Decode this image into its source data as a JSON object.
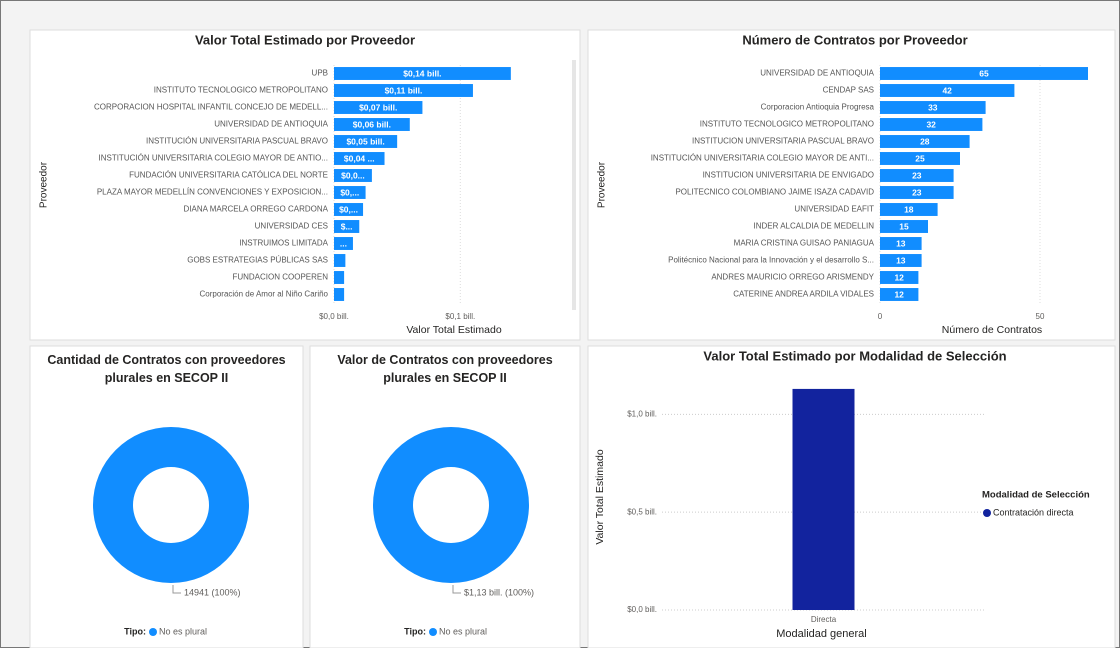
{
  "chart_data": [
    {
      "type": "bar",
      "orientation": "horizontal",
      "title": "Valor Total Estimado por Proveedor",
      "x_label": "Valor Total Estimado",
      "y_label": "Proveedor",
      "categories": [
        "UPB",
        "INSTITUTO TECNOLOGICO METROPOLITANO",
        "CORPORACION HOSPITAL INFANTIL CONCEJO DE MEDELL...",
        "UNIVERSIDAD DE ANTIOQUIA",
        "INSTITUCIÓN UNIVERSITARIA PASCUAL BRAVO",
        "INSTITUCIÓN UNIVERSITARIA COLEGIO MAYOR DE ANTIO...",
        "FUNDACIÓN UNIVERSITARIA CATÓLICA DEL NORTE",
        "PLAZA MAYOR MEDELLÍN CONVENCIONES Y EXPOSICION...",
        "DIANA MARCELA ORREGO CARDONA",
        "UNIVERSIDAD CES",
        "INSTRUIMOS LIMITADA",
        "GOBS ESTRATEGIAS PÚBLICAS SAS",
        "FUNDACION COOPEREN",
        "Corporación de Amor al Niño Cariño"
      ],
      "values": [
        0.14,
        0.11,
        0.07,
        0.06,
        0.05,
        0.04,
        0.03,
        0.025,
        0.023,
        0.02,
        0.015,
        0.009,
        0.008,
        0.008
      ],
      "value_labels": [
        "$0,14 bill.",
        "$0,11 bill.",
        "$0,07 bill.",
        "$0,06 bill.",
        "$0,05 bill.",
        "$0,04 ...",
        "$0,0...",
        "$0,...",
        "$0,...",
        "$...",
        "...",
        null,
        null,
        null
      ],
      "color": "#118dff",
      "xlim": [
        0,
        0.19
      ],
      "xticks": [
        {
          "value": 0,
          "label": "$0,0 bill."
        },
        {
          "value": 0.1,
          "label": "$0,1 bill."
        }
      ],
      "grid": true
    },
    {
      "type": "bar",
      "orientation": "horizontal",
      "title": "Número de Contratos por Proveedor",
      "x_label": "Número de Contratos",
      "y_label": "Proveedor",
      "categories": [
        "UNIVERSIDAD DE ANTIOQUIA",
        "CENDAP SAS",
        "Corporacion Antioquia Progresa",
        "INSTITUTO TECNOLOGICO METROPOLITANO",
        "INSTITUCION UNIVERSITARIA PASCUAL BRAVO",
        "INSTITUCIÓN UNIVERSITARIA COLEGIO MAYOR DE ANTI...",
        "INSTITUCION UNIVERSITARIA DE ENVIGADO",
        "POLITECNICO COLOMBIANO JAIME ISAZA CADAVID",
        "UNIVERSIDAD EAFIT",
        "INDER ALCALDIA DE MEDELLIN",
        "MARIA CRISTINA GUISAO PANIAGUA",
        "Politécnico Nacional para la Innovación y el desarrollo S...",
        "ANDRES MAURICIO ORREGO ARISMENDY",
        "CATERINE ANDREA ARDILA VIDALES"
      ],
      "values": [
        65,
        42,
        33,
        32,
        28,
        25,
        23,
        23,
        18,
        15,
        13,
        13,
        12,
        12
      ],
      "color": "#118dff",
      "xlim": [
        0,
        70
      ],
      "xticks": [
        0,
        50
      ],
      "grid": true
    },
    {
      "type": "donut",
      "title": "Cantidad de Contratos con proveedores plurales en SECOP II",
      "legend_title": "Tipo:",
      "categories": [
        "No es plural"
      ],
      "values": [
        14941
      ],
      "value_labels": [
        "14941 (100%)"
      ],
      "colors": [
        "#118dff"
      ]
    },
    {
      "type": "donut",
      "title": "Valor de Contratos con proveedores plurales en SECOP II",
      "legend_title": "Tipo:",
      "categories": [
        "No es plural"
      ],
      "values": [
        1.13
      ],
      "value_labels": [
        "$1,13 bill. (100%)"
      ],
      "colors": [
        "#118dff"
      ]
    },
    {
      "type": "column",
      "title": "Valor Total Estimado por Modalidad de Selección",
      "x_label": "Modalidad general",
      "y_label": "Valor Total Estimado",
      "legend_title": "Modalidad de Selección",
      "legend": "right",
      "categories": [
        "Directa"
      ],
      "series": [
        {
          "name": "Contratación directa",
          "color": "#12239e",
          "values": [
            1.13
          ]
        }
      ],
      "ylim": [
        0,
        1.15
      ],
      "yticks": [
        {
          "value": 0,
          "label": "$0,0 bill."
        },
        {
          "value": 0.5,
          "label": "$0,5 bill."
        },
        {
          "value": 1.0,
          "label": "$1,0 bill."
        }
      ],
      "grid": true
    }
  ]
}
